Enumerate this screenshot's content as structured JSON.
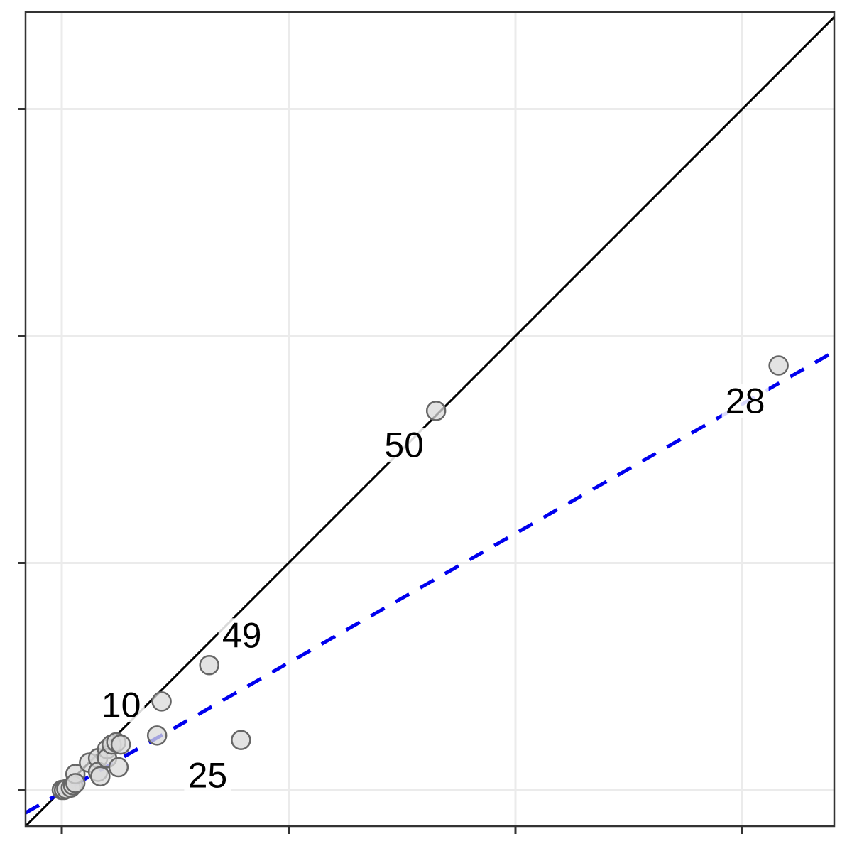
{
  "chart_data": {
    "type": "scatter",
    "title": "",
    "xlabel": "",
    "ylabel": "",
    "xlim": [
      -0.8,
      17.1
    ],
    "ylim": [
      -0.8,
      17.1
    ],
    "x_ticks": [
      0,
      5,
      10,
      15
    ],
    "y_ticks": [
      0,
      5,
      10,
      15
    ],
    "tick_labels_visible": false,
    "grid": true,
    "legend": "none",
    "colors": {
      "point_fill": "#d9d9d9",
      "point_stroke": "#666666",
      "identity_line": "#000000",
      "fit_line": "#0000ee",
      "grid": "#ebebeb",
      "panel_border": "#333333"
    },
    "points": [
      {
        "x": 0.0,
        "y": 0.0
      },
      {
        "x": 0.05,
        "y": 0.0
      },
      {
        "x": 0.1,
        "y": 0.02
      },
      {
        "x": 0.2,
        "y": 0.05
      },
      {
        "x": 0.25,
        "y": 0.1
      },
      {
        "x": 0.3,
        "y": 0.35
      },
      {
        "x": 0.3,
        "y": 0.15
      },
      {
        "x": 0.6,
        "y": 0.6
      },
      {
        "x": 0.8,
        "y": 0.7
      },
      {
        "x": 0.8,
        "y": 0.4
      },
      {
        "x": 0.85,
        "y": 0.3
      },
      {
        "x": 1.0,
        "y": 0.9
      },
      {
        "x": 1.0,
        "y": 0.7
      },
      {
        "x": 1.1,
        "y": 1.0
      },
      {
        "x": 1.2,
        "y": 1.05
      },
      {
        "x": 1.25,
        "y": 0.5
      },
      {
        "x": 1.3,
        "y": 1.0
      },
      {
        "x": 2.1,
        "y": 1.2
      },
      {
        "x": 2.2,
        "y": 1.95
      },
      {
        "x": 3.25,
        "y": 2.75
      },
      {
        "x": 3.95,
        "y": 1.1
      },
      {
        "x": 8.25,
        "y": 8.35
      },
      {
        "x": 15.8,
        "y": 9.35
      }
    ],
    "point_labels": [
      {
        "label": "28",
        "x": 15.8,
        "y": 9.35
      },
      {
        "label": "50",
        "x": 8.25,
        "y": 8.35
      },
      {
        "label": "49",
        "x": 3.25,
        "y": 2.75
      },
      {
        "label": "10",
        "x": 2.2,
        "y": 1.95
      },
      {
        "label": "25",
        "x": 3.95,
        "y": 1.1
      }
    ],
    "reference_lines": [
      {
        "kind": "identity",
        "style": "solid",
        "intercept": 0,
        "slope": 1
      },
      {
        "kind": "regression",
        "style": "dashed",
        "intercept": -0.05,
        "slope": 0.57
      }
    ]
  }
}
